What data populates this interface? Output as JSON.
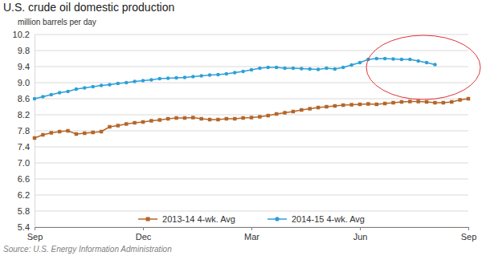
{
  "chart_data": {
    "type": "line",
    "title": "U.S. crude oil domestic production",
    "ylabel": "million barrels per day",
    "source": "Source: U.S. Energy Information Administration",
    "categories": [
      "Sep",
      null,
      null,
      null,
      null,
      null,
      null,
      null,
      null,
      null,
      null,
      null,
      null,
      "Dec",
      null,
      null,
      null,
      null,
      null,
      null,
      null,
      null,
      null,
      null,
      null,
      null,
      "Mar",
      null,
      null,
      null,
      null,
      null,
      null,
      null,
      null,
      null,
      null,
      null,
      null,
      "Jun",
      null,
      null,
      null,
      null,
      null,
      null,
      null,
      null,
      null,
      null,
      null,
      null,
      "Sep"
    ],
    "series": [
      {
        "name": "2013-14 4-wk. Avg",
        "color": "#b4662a",
        "marker": "square",
        "values": [
          7.62,
          7.7,
          7.75,
          7.78,
          7.8,
          7.72,
          7.74,
          7.76,
          7.78,
          7.9,
          7.93,
          7.97,
          8.0,
          8.02,
          8.05,
          8.07,
          8.1,
          8.12,
          8.12,
          8.13,
          8.1,
          8.08,
          8.08,
          8.1,
          8.1,
          8.12,
          8.13,
          8.15,
          8.18,
          8.22,
          8.25,
          8.28,
          8.32,
          8.35,
          8.38,
          8.4,
          8.42,
          8.44,
          8.45,
          8.46,
          8.47,
          8.46,
          8.48,
          8.5,
          8.52,
          8.53,
          8.53,
          8.52,
          8.5,
          8.5,
          8.52,
          8.57,
          8.6
        ]
      },
      {
        "name": "2014-15 4-wk. Avg",
        "color": "#2ca0d8",
        "marker": "circle",
        "values": [
          8.6,
          8.65,
          8.7,
          8.75,
          8.78,
          8.84,
          8.87,
          8.9,
          8.93,
          8.95,
          8.98,
          9.0,
          9.03,
          9.05,
          9.07,
          9.1,
          9.11,
          9.12,
          9.13,
          9.15,
          9.17,
          9.19,
          9.2,
          9.22,
          9.25,
          9.28,
          9.32,
          9.36,
          9.38,
          9.38,
          9.36,
          9.36,
          9.35,
          9.34,
          9.33,
          9.36,
          9.34,
          9.38,
          9.44,
          9.5,
          9.58,
          9.6,
          9.6,
          9.59,
          9.58,
          9.58,
          9.54,
          9.5,
          9.45,
          null,
          null,
          null,
          null
        ]
      }
    ],
    "ylim": [
      5.4,
      10.2
    ],
    "yticks": [
      5.4,
      5.8,
      6.2,
      6.6,
      {
        "value": 7,
        "label": "7.0"
      },
      7.4,
      7.8,
      8.2,
      8.6,
      {
        "value": 9,
        "label": "9.0"
      },
      9.4,
      9.8,
      10.2
    ],
    "grid": true,
    "legend": "bottom"
  }
}
